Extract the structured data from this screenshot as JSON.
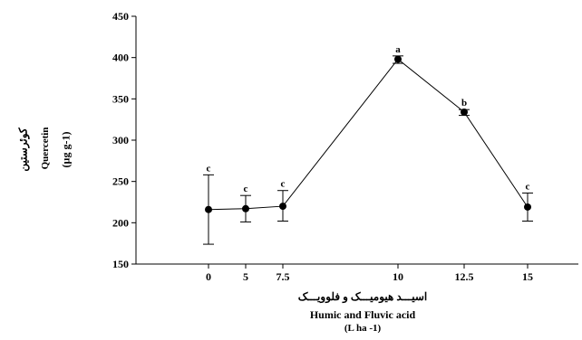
{
  "chart_data": {
    "type": "line",
    "categories": [
      "0",
      "5",
      "7.5",
      "10",
      "12.5",
      "15"
    ],
    "values": [
      216,
      217,
      220,
      398,
      334,
      219
    ],
    "error_low": [
      174,
      201,
      202,
      393,
      330,
      202
    ],
    "error_high": [
      258,
      233,
      239,
      402,
      337,
      236
    ],
    "point_labels": [
      "c",
      "c",
      "c",
      "a",
      "b",
      "c"
    ],
    "ylim": [
      150,
      450
    ],
    "yticks": [
      "150",
      "200",
      "250",
      "300",
      "350",
      "400",
      "450"
    ],
    "ylabel_lines": [
      "کوئرستین",
      "Quercetin",
      "(µg g-1)"
    ],
    "xlabel_lines": [
      "اسیـــد هیومیـــک و فلوویـــک",
      "Humic and Fluvic acid",
      "(L ha -1)"
    ],
    "grid": false,
    "legend": false,
    "colors": {
      "line": "#000000",
      "marker": "#000000"
    }
  }
}
